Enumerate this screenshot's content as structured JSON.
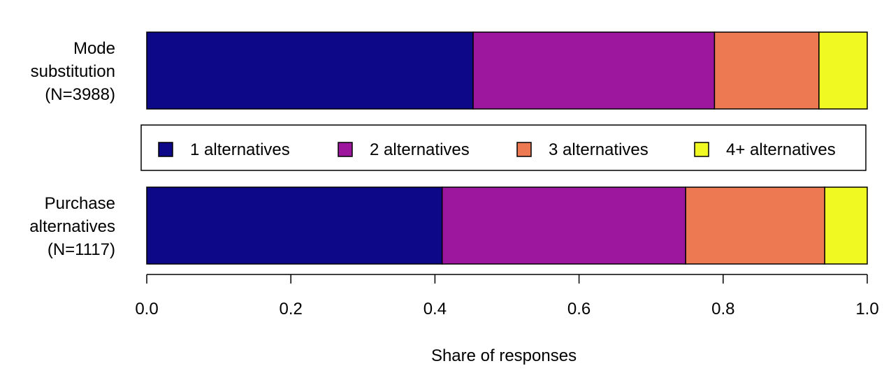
{
  "chart_data": {
    "type": "bar",
    "orientation": "horizontal",
    "stacked": true,
    "title": "",
    "xlabel": "Share of responses",
    "ylabel": "",
    "xlim": [
      0,
      1
    ],
    "x_ticks": [
      "0.0",
      "0.2",
      "0.4",
      "0.6",
      "0.8",
      "1.0"
    ],
    "grid": false,
    "legend_position": "between bars",
    "categories": [
      [
        "Mode",
        "substitution",
        "(N=3988)"
      ],
      [
        "Purchase",
        "alternatives",
        "(N=1117)"
      ]
    ],
    "series": [
      {
        "name": "1 alternatives",
        "color": "#0d0887",
        "values": [
          0.453,
          0.41
        ]
      },
      {
        "name": "2 alternatives",
        "color": "#9c179e",
        "values": [
          0.335,
          0.338
        ]
      },
      {
        "name": "3 alternatives",
        "color": "#ed7953",
        "values": [
          0.145,
          0.193
        ]
      },
      {
        "name": "4+ alternatives",
        "color": "#f0f921",
        "values": [
          0.067,
          0.059
        ]
      }
    ]
  }
}
